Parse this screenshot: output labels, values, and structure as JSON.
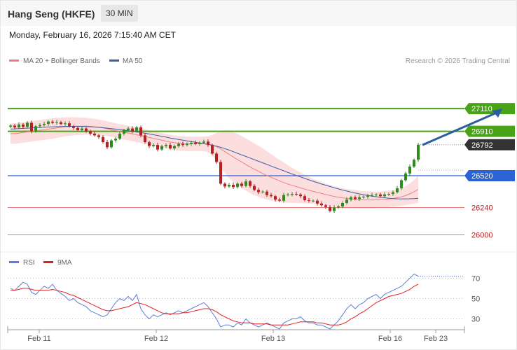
{
  "header": {
    "title": "Hang Seng (HKFE)",
    "interval": "30 MIN",
    "datetime": "Monday, February 16, 2026 7:15:40 AM CET"
  },
  "colors": {
    "bull": "#2e8b1e",
    "bear": "#b52020",
    "ma20": "#f08080",
    "ma50": "#3a5ea8",
    "band": "#fcd8d8",
    "resistance": "#4aa317",
    "pivot": "#2a63d6",
    "support": "#e87878",
    "arrow": "#2a5ea3",
    "rsi": "#5b7fd8",
    "rsi_ma": "#e02020"
  },
  "chart_data": [
    {
      "type": "candlestick",
      "legend": [
        "MA 20 + Bollinger Bands",
        "MA 50"
      ],
      "source": "Research © 2026 Trading Central",
      "x_ticks": [
        "Feb 11",
        "Feb 12",
        "Feb 13",
        "Feb 16",
        "Feb 23"
      ],
      "ylim": [
        25880,
        27400
      ],
      "closes": [
        26960,
        26945,
        26970,
        26950,
        26985,
        26910,
        26955,
        26965,
        26975,
        26995,
        26985,
        26990,
        26975,
        26980,
        26955,
        26940,
        26920,
        26935,
        26910,
        26890,
        26875,
        26860,
        26815,
        26770,
        26830,
        26845,
        26890,
        26920,
        26935,
        26910,
        26945,
        26875,
        26815,
        26780,
        26790,
        26750,
        26780,
        26790,
        26760,
        26780,
        26800,
        26790,
        26800,
        26810,
        26800,
        26810,
        26820,
        26790,
        26715,
        26640,
        26450,
        26425,
        26440,
        26420,
        26450,
        26430,
        26470,
        26430,
        26395,
        26375,
        26380,
        26350,
        26340,
        26310,
        26300,
        26350,
        26355,
        26360,
        26355,
        26340,
        26305,
        26300,
        26300,
        26275,
        26260,
        26245,
        26210,
        26240,
        26250,
        26280,
        26310,
        26330,
        26315,
        26330,
        26335,
        26345,
        26350,
        26355,
        26340,
        26355,
        26360,
        26375,
        26410,
        26480,
        26540,
        26600,
        26660,
        26792
      ],
      "ma20": [
        26890,
        26890,
        26895,
        26900,
        26905,
        26910,
        26915,
        26920,
        26925,
        26930,
        26935,
        26940,
        26945,
        26950,
        26952,
        26954,
        26955,
        26955,
        26955,
        26953,
        26950,
        26945,
        26940,
        26933,
        26925,
        26917,
        26910,
        26902,
        26895,
        26888,
        26880,
        26872,
        26864,
        26856,
        26848,
        26840,
        26832,
        26824,
        26816,
        26810,
        26805,
        26802,
        26800,
        26800,
        26800,
        26800,
        26800,
        26796,
        26788,
        26776,
        26755,
        26732,
        26708,
        26685,
        26662,
        26640,
        26618,
        26597,
        26577,
        26558,
        26540,
        26522,
        26506,
        26490,
        26475,
        26460,
        26447,
        26435,
        26424,
        26413,
        26402,
        26392,
        26382,
        26373,
        26364,
        26355,
        26346,
        26338,
        26331,
        26325,
        26320,
        26316,
        26312,
        26310,
        26308,
        26307,
        26307,
        26308,
        26310,
        26312,
        26316,
        26320,
        26326,
        26334,
        26345,
        26360,
        26378,
        26400
      ],
      "ma50": [
        26930,
        26932,
        26934,
        26936,
        26938,
        26940,
        26942,
        26944,
        26946,
        26948,
        26950,
        26951,
        26952,
        26953,
        26954,
        26954,
        26954,
        26953,
        26952,
        26950,
        26948,
        26945,
        26942,
        26938,
        26934,
        26930,
        26926,
        26921,
        26916,
        26911,
        26905,
        26899,
        26893,
        26887,
        26880,
        26873,
        26866,
        26859,
        26852,
        26845,
        26838,
        26832,
        26826,
        26820,
        26814,
        26808,
        26802,
        26795,
        26788,
        26780,
        26770,
        26758,
        26745,
        26731,
        26717,
        26703,
        26689,
        26675,
        26661,
        26647,
        26633,
        26619,
        26605,
        26591,
        26577,
        26563,
        26549,
        26535,
        26522,
        26509,
        26496,
        26483,
        26471,
        26459,
        26447,
        26436,
        26425,
        26414,
        26404,
        26394,
        26385,
        26376,
        26368,
        26360,
        26353,
        26346,
        26340,
        26335,
        26330,
        26326,
        26322,
        26319,
        26317,
        26316,
        26316,
        26317,
        26319,
        26322
      ],
      "band_width": [
        90,
        90,
        90,
        90,
        90,
        90,
        90,
        90,
        90,
        90,
        90,
        88,
        86,
        84,
        82,
        80,
        78,
        76,
        74,
        72,
        70,
        68,
        66,
        64,
        64,
        64,
        64,
        64,
        64,
        64,
        64,
        64,
        64,
        64,
        64,
        64,
        64,
        64,
        64,
        64,
        64,
        64,
        64,
        64,
        64,
        64,
        64,
        70,
        90,
        120,
        160,
        190,
        210,
        220,
        225,
        228,
        230,
        230,
        228,
        225,
        220,
        212,
        205,
        195,
        185,
        175,
        165,
        155,
        145,
        135,
        125,
        118,
        110,
        105,
        100,
        95,
        92,
        90,
        88,
        86,
        84,
        82,
        80,
        78,
        76,
        75,
        74,
        73,
        72,
        72,
        72,
        72,
        74,
        78,
        84,
        92,
        105,
        118
      ],
      "levels": [
        {
          "value": 27110,
          "label": "27110",
          "kind": "resistance"
        },
        {
          "value": 26910,
          "label": "26910",
          "kind": "resistance"
        },
        {
          "value": 26792,
          "label": "26792",
          "kind": "last"
        },
        {
          "value": 26520,
          "label": "26520",
          "kind": "pivot"
        },
        {
          "value": 26240,
          "label": "26240",
          "kind": "support"
        },
        {
          "value": 26000,
          "label": "26000",
          "kind": "support"
        }
      ],
      "arrow": {
        "from_index": 98,
        "from_value": 26790,
        "to_index": 120,
        "to_value": 27110
      }
    },
    {
      "type": "line",
      "legend": [
        "RSI",
        "9MA"
      ],
      "ylim": [
        20,
        82
      ],
      "y_ticks": [
        70,
        50,
        30
      ],
      "rsi": [
        60,
        58,
        62,
        66,
        64,
        56,
        54,
        58,
        62,
        60,
        64,
        58,
        55,
        52,
        48,
        50,
        46,
        44,
        42,
        38,
        36,
        34,
        32,
        34,
        40,
        46,
        50,
        48,
        52,
        48,
        54,
        40,
        34,
        30,
        34,
        32,
        34,
        36,
        34,
        36,
        38,
        36,
        38,
        40,
        42,
        44,
        46,
        42,
        36,
        30,
        22,
        24,
        24,
        22,
        26,
        24,
        30,
        26,
        24,
        22,
        24,
        26,
        24,
        22,
        20,
        26,
        28,
        30,
        30,
        32,
        28,
        26,
        26,
        24,
        24,
        22,
        20,
        24,
        28,
        34,
        40,
        44,
        40,
        44,
        46,
        50,
        52,
        54,
        50,
        54,
        56,
        58,
        60,
        62,
        66,
        70,
        74,
        72
      ],
      "rsi_ma": [
        58,
        58,
        59,
        60,
        60,
        59,
        58,
        58,
        58,
        58,
        59,
        58,
        57,
        56,
        54,
        53,
        51,
        49,
        47,
        45,
        43,
        41,
        39,
        38,
        38,
        39,
        40,
        41,
        42,
        44,
        46,
        45,
        44,
        42,
        40,
        38,
        36,
        35,
        35,
        35,
        35,
        36,
        36,
        37,
        38,
        39,
        40,
        40,
        39,
        37,
        34,
        32,
        30,
        28,
        27,
        26,
        26,
        26,
        25,
        25,
        25,
        25,
        24,
        24,
        24,
        24,
        24,
        25,
        26,
        27,
        27,
        27,
        27,
        26,
        26,
        25,
        24,
        24,
        24,
        25,
        27,
        30,
        32,
        35,
        37,
        40,
        43,
        46,
        48,
        50,
        52,
        53,
        54,
        55,
        57,
        59,
        62,
        64
      ]
    }
  ]
}
